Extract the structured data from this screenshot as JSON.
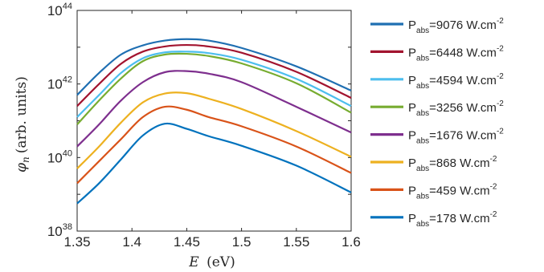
{
  "chart_data": {
    "type": "line",
    "xlabel_var": "E",
    "xlabel_unit": "(eV)",
    "ylabel_var": "φ",
    "ylabel_sub": "n",
    "ylabel_unit": "(arb. units)",
    "xlim": [
      1.35,
      1.6
    ],
    "ylim_log10": [
      38,
      44
    ],
    "yscale": "log",
    "grid": false,
    "legend_placement": "right-outside",
    "x_ticks": [
      "1.35",
      "1.4",
      "1.45",
      "1.5",
      "1.55",
      "1.6"
    ],
    "y_ticks": [
      {
        "base": "10",
        "exp": "38"
      },
      {
        "base": "10",
        "exp": "40"
      },
      {
        "base": "10",
        "exp": "42"
      },
      {
        "base": "10",
        "exp": "44"
      }
    ],
    "x": [
      1.35,
      1.37,
      1.39,
      1.41,
      1.43,
      1.45,
      1.47,
      1.5,
      1.55,
      1.6
    ],
    "series": [
      {
        "prefix": "P",
        "sub": "abs",
        "value": "=9076 W.cm",
        "sup": "-2",
        "color": "#1f6fb2",
        "log10_values": [
          41.7,
          42.3,
          42.8,
          43.05,
          43.18,
          43.22,
          43.18,
          42.98,
          42.48,
          41.82
        ]
      },
      {
        "prefix": "P",
        "sub": "abs",
        "value": "=6448 W.cm",
        "sup": "-2",
        "color": "#a2142f",
        "log10_values": [
          41.4,
          42.0,
          42.55,
          42.88,
          43.02,
          43.06,
          43.02,
          42.85,
          42.33,
          41.62
        ]
      },
      {
        "prefix": "P",
        "sub": "abs",
        "value": "=4594 W.cm",
        "sup": "-2",
        "color": "#4dbeee",
        "log10_values": [
          41.1,
          41.7,
          42.3,
          42.7,
          42.86,
          42.88,
          42.84,
          42.66,
          42.14,
          41.4
        ]
      },
      {
        "prefix": "P",
        "sub": "abs",
        "value": "=3256 W.cm",
        "sup": "-2",
        "color": "#77ac30",
        "log10_values": [
          40.9,
          41.55,
          42.15,
          42.62,
          42.8,
          42.82,
          42.76,
          42.56,
          42.02,
          41.22
        ]
      },
      {
        "prefix": "P",
        "sub": "abs",
        "value": "=1676 W.cm",
        "sup": "-2",
        "color": "#7e2f8e",
        "log10_values": [
          40.3,
          40.9,
          41.55,
          42.05,
          42.32,
          42.35,
          42.28,
          42.05,
          41.38,
          40.68
        ]
      },
      {
        "prefix": "P",
        "sub": "abs",
        "value": "=868 W.cm",
        "sup": "-2",
        "color": "#edb120",
        "log10_values": [
          39.7,
          40.3,
          40.95,
          41.5,
          41.74,
          41.75,
          41.6,
          41.32,
          40.72,
          40.02
        ]
      },
      {
        "prefix": "P",
        "sub": "abs",
        "value": "=459 W.cm",
        "sup": "-2",
        "color": "#d95319",
        "log10_values": [
          39.3,
          39.9,
          40.5,
          41.1,
          41.38,
          41.3,
          41.1,
          40.85,
          40.3,
          39.58
        ]
      },
      {
        "prefix": "P",
        "sub": "abs",
        "value": "=178 W.cm",
        "sup": "-2",
        "color": "#0072bd",
        "log10_values": [
          38.75,
          39.3,
          39.95,
          40.6,
          40.92,
          40.78,
          40.58,
          40.32,
          39.78,
          39.05
        ]
      }
    ]
  }
}
